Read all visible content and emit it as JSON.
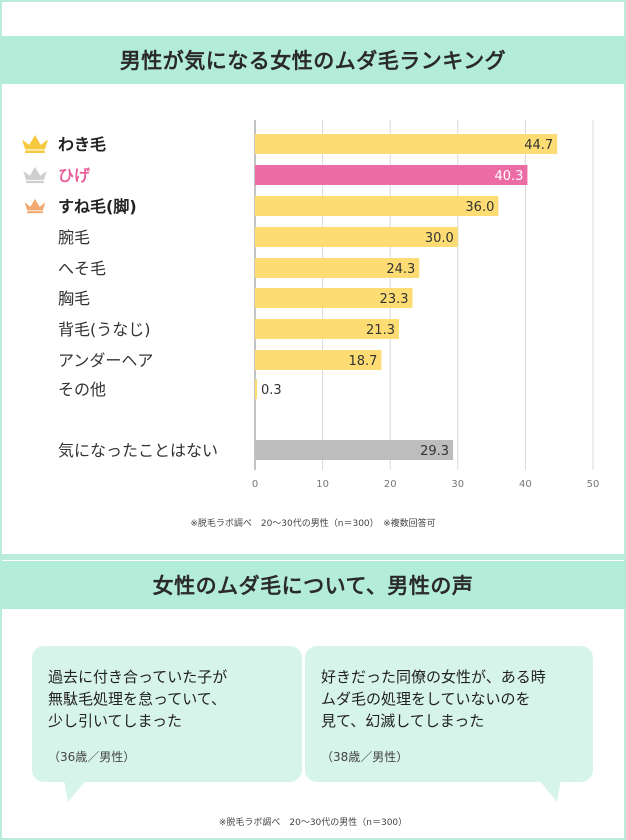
{
  "title": "男性が気になる女性のムダ毛ランキング",
  "chart_data": {
    "type": "bar",
    "orientation": "horizontal",
    "categories": [
      "わき毛",
      "ひげ",
      "すね毛(脚)",
      "腕毛",
      "へそ毛",
      "胸毛",
      "背毛(うなじ)",
      "アンダーヘア",
      "その他",
      "気になったことはない"
    ],
    "values": [
      44.7,
      40.3,
      36.0,
      30.0,
      24.3,
      23.3,
      21.3,
      18.7,
      0.3,
      29.3
    ],
    "value_labels": [
      "44.7",
      "40.3",
      "36.0",
      "30.0",
      "24.3",
      "23.3",
      "21.3",
      "18.7",
      "0.3",
      "29.3"
    ],
    "x_ticks": [
      "0",
      "10",
      "20",
      "30",
      "40",
      "50"
    ],
    "xlim": [
      0,
      50
    ],
    "grid": true,
    "highlight_index": 1,
    "rank_icons": [
      "crown-gold",
      "crown-silver",
      "crown-bronze"
    ],
    "colors": {
      "bar": "#fddd73",
      "highlight": "#ec6ca6",
      "none": "#bdbdbd",
      "gold": "#f7c93f",
      "silver": "#cfcfcf",
      "bronze": "#f3a970"
    }
  },
  "note1": "※脱毛ラボ調べ　20〜30代の男性（n＝300）　※複数回答可",
  "section2_title": "女性のムダ毛について、男性の声",
  "voices": [
    {
      "lines": [
        "過去に付き合っていた子が",
        "無駄毛処理を怠っていて、",
        "少し引いてしまった"
      ],
      "who": "（36歳／男性）"
    },
    {
      "lines": [
        "好きだった同僚の女性が、ある時",
        "ムダ毛の処理をしていないのを",
        "見て、幻滅してしまった"
      ],
      "who": "（38歳／男性）"
    }
  ],
  "note2": "※脱毛ラボ調べ　20〜30代の男性（n＝300）"
}
